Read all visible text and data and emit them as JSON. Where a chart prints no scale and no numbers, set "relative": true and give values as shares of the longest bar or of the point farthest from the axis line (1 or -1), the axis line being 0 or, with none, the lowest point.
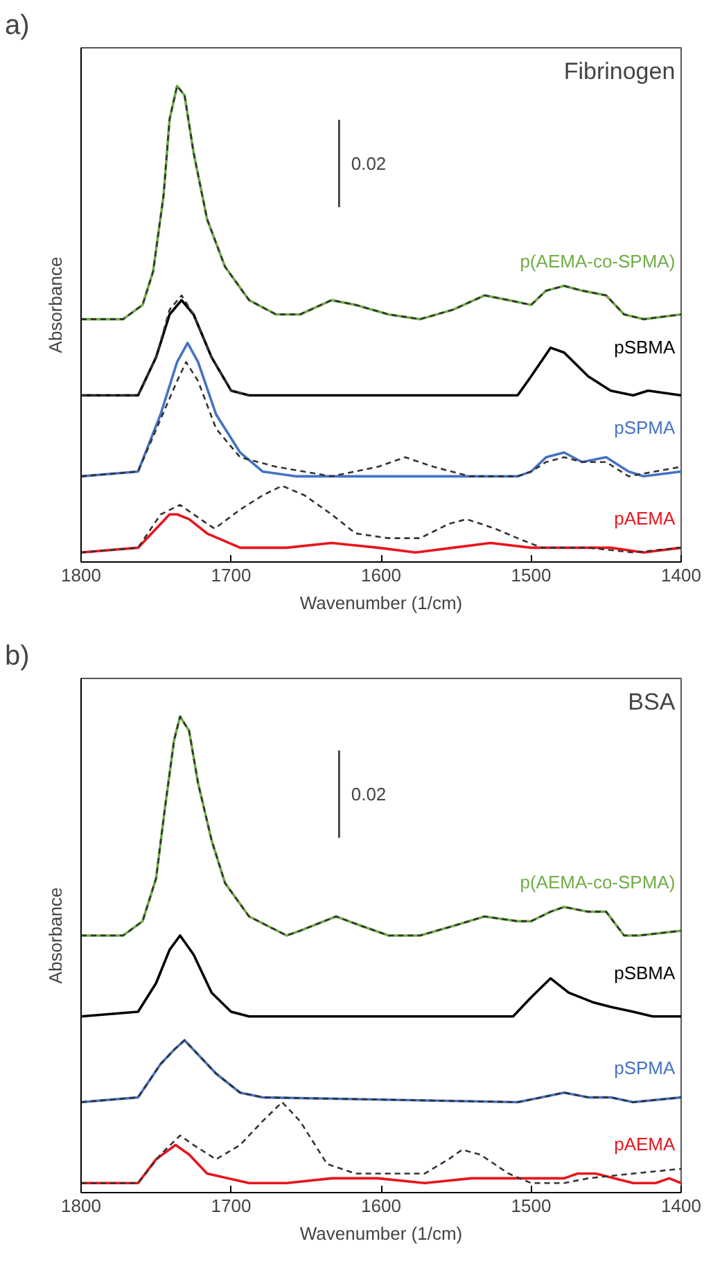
{
  "chart_data": [
    {
      "type": "line",
      "title": "a)",
      "subtitle": "Fibrinogen",
      "xlabel": "Wavenumber (1/cm)",
      "ylabel": "Absorbance",
      "relative": true,
      "xlim": [
        1800,
        1400
      ],
      "xticks": [
        1800,
        1700,
        1600,
        1500,
        1400
      ],
      "grid": false,
      "annotations": [
        "0.02"
      ],
      "series": [
        {
          "name": "p(AEMA-co-SPMA)",
          "color": "#70ad47",
          "x": [
            1800,
            1772,
            1759,
            1752,
            1745,
            1741,
            1736,
            1731,
            1725,
            1716,
            1704,
            1688,
            1670,
            1654,
            1633,
            1617,
            1595,
            1574,
            1552,
            1531,
            1515,
            1500,
            1490,
            1478,
            1466,
            1450,
            1438,
            1425,
            1400
          ],
          "values": [
            0.51,
            0.51,
            0.54,
            0.61,
            0.77,
            0.93,
            1.0,
            0.98,
            0.86,
            0.72,
            0.62,
            0.55,
            0.52,
            0.52,
            0.55,
            0.54,
            0.52,
            0.51,
            0.53,
            0.56,
            0.55,
            0.54,
            0.57,
            0.58,
            0.57,
            0.56,
            0.52,
            0.51,
            0.52
          ]
        },
        {
          "color": "#333333",
          "line_style": "dashed",
          "x": [
            1800,
            1772,
            1759,
            1752,
            1745,
            1741,
            1736,
            1731,
            1725,
            1716,
            1704,
            1688,
            1670,
            1654,
            1633,
            1617,
            1595,
            1574,
            1552,
            1531,
            1515,
            1500,
            1490,
            1478,
            1466,
            1450,
            1438,
            1425,
            1400
          ],
          "values": [
            0.51,
            0.51,
            0.54,
            0.61,
            0.77,
            0.93,
            1.0,
            0.98,
            0.86,
            0.72,
            0.62,
            0.55,
            0.52,
            0.52,
            0.55,
            0.54,
            0.52,
            0.51,
            0.53,
            0.56,
            0.55,
            0.54,
            0.57,
            0.58,
            0.57,
            0.56,
            0.52,
            0.51,
            0.52
          ]
        },
        {
          "name": "pSBMA",
          "color": "#000000",
          "x": [
            1800,
            1762,
            1750,
            1741,
            1733,
            1725,
            1713,
            1700,
            1688,
            1509,
            1500,
            1487,
            1478,
            1462,
            1447,
            1432,
            1422,
            1400
          ],
          "values": [
            0.35,
            0.35,
            0.43,
            0.52,
            0.55,
            0.52,
            0.43,
            0.36,
            0.35,
            0.35,
            0.39,
            0.45,
            0.44,
            0.39,
            0.36,
            0.35,
            0.36,
            0.35
          ]
        },
        {
          "color": "#333333",
          "line_style": "dashed",
          "x": [
            1800,
            1762,
            1750,
            1741,
            1733,
            1725,
            1713,
            1700,
            1688
          ],
          "values": [
            0.35,
            0.35,
            0.43,
            0.53,
            0.56,
            0.52,
            0.43,
            0.36,
            0.35
          ]
        },
        {
          "name": "pSPMA",
          "color": "#4472c4",
          "x": [
            1800,
            1762,
            1747,
            1736,
            1729,
            1722,
            1710,
            1694,
            1679,
            1657,
            1509,
            1500,
            1490,
            1478,
            1466,
            1450,
            1435,
            1425,
            1400
          ],
          "values": [
            0.18,
            0.19,
            0.31,
            0.42,
            0.46,
            0.42,
            0.31,
            0.23,
            0.19,
            0.18,
            0.18,
            0.19,
            0.22,
            0.23,
            0.21,
            0.22,
            0.19,
            0.18,
            0.19
          ]
        },
        {
          "color": "#333333",
          "line_style": "dashed",
          "x": [
            1800,
            1762,
            1747,
            1736,
            1730,
            1722,
            1710,
            1694,
            1670,
            1633,
            1602,
            1584,
            1565,
            1541,
            1509,
            1500,
            1490,
            1478,
            1466,
            1450,
            1435,
            1400
          ],
          "values": [
            0.18,
            0.19,
            0.3,
            0.38,
            0.42,
            0.38,
            0.28,
            0.22,
            0.2,
            0.18,
            0.2,
            0.22,
            0.2,
            0.18,
            0.18,
            0.19,
            0.21,
            0.22,
            0.21,
            0.21,
            0.18,
            0.2
          ]
        },
        {
          "name": "pAEMA",
          "color": "#e8141c",
          "x": [
            1800,
            1762,
            1750,
            1741,
            1736,
            1728,
            1716,
            1694,
            1663,
            1633,
            1602,
            1577,
            1552,
            1527,
            1500,
            1478,
            1447,
            1425,
            1400
          ],
          "values": [
            0.02,
            0.03,
            0.07,
            0.1,
            0.1,
            0.09,
            0.06,
            0.03,
            0.03,
            0.04,
            0.03,
            0.02,
            0.03,
            0.04,
            0.03,
            0.03,
            0.03,
            0.02,
            0.03
          ]
        },
        {
          "color": "#333333",
          "line_style": "dashed",
          "x": [
            1800,
            1762,
            1747,
            1734,
            1725,
            1711,
            1694,
            1679,
            1666,
            1651,
            1633,
            1617,
            1595,
            1574,
            1555,
            1543,
            1524,
            1509,
            1493,
            1462,
            1432,
            1400
          ],
          "values": [
            0.02,
            0.03,
            0.1,
            0.12,
            0.1,
            0.07,
            0.11,
            0.14,
            0.16,
            0.14,
            0.1,
            0.06,
            0.05,
            0.05,
            0.08,
            0.09,
            0.07,
            0.05,
            0.03,
            0.03,
            0.02,
            0.03
          ]
        }
      ]
    },
    {
      "type": "line",
      "title": "b)",
      "subtitle": "BSA",
      "xlabel": "Wavenumber (1/cm)",
      "ylabel": "Absorbance",
      "relative": true,
      "xlim": [
        1800,
        1400
      ],
      "xticks": [
        1800,
        1700,
        1600,
        1500,
        1400
      ],
      "grid": false,
      "annotations": [
        "0.02"
      ],
      "series": [
        {
          "name": "p(AEMA-co-SPMA)",
          "color": "#70ad47",
          "x": [
            1800,
            1772,
            1759,
            1750,
            1744,
            1738,
            1734,
            1728,
            1722,
            1713,
            1704,
            1688,
            1663,
            1654,
            1630,
            1613,
            1595,
            1574,
            1552,
            1531,
            1509,
            1500,
            1487,
            1478,
            1462,
            1450,
            1438,
            1428,
            1400
          ],
          "values": [
            0.54,
            0.54,
            0.57,
            0.66,
            0.81,
            0.95,
            1.0,
            0.97,
            0.86,
            0.74,
            0.65,
            0.58,
            0.54,
            0.55,
            0.58,
            0.56,
            0.54,
            0.54,
            0.56,
            0.58,
            0.57,
            0.57,
            0.59,
            0.6,
            0.59,
            0.59,
            0.54,
            0.54,
            0.55
          ]
        },
        {
          "color": "#333333",
          "line_style": "dashed",
          "x": [
            1800,
            1772,
            1759,
            1750,
            1744,
            1738,
            1734,
            1728,
            1722,
            1713,
            1704,
            1688,
            1663,
            1654,
            1630,
            1613,
            1595,
            1574,
            1552,
            1531,
            1509,
            1500,
            1487,
            1478,
            1462,
            1450,
            1438,
            1428,
            1400
          ],
          "values": [
            0.54,
            0.54,
            0.57,
            0.66,
            0.81,
            0.95,
            1.0,
            0.97,
            0.86,
            0.74,
            0.65,
            0.58,
            0.54,
            0.55,
            0.58,
            0.56,
            0.54,
            0.54,
            0.56,
            0.58,
            0.57,
            0.57,
            0.59,
            0.6,
            0.59,
            0.59,
            0.54,
            0.54,
            0.55
          ]
        },
        {
          "name": "pSBMA",
          "color": "#000000",
          "x": [
            1800,
            1762,
            1750,
            1741,
            1734,
            1725,
            1713,
            1700,
            1688,
            1512,
            1500,
            1487,
            1475,
            1459,
            1447,
            1432,
            1419,
            1400
          ],
          "values": [
            0.37,
            0.38,
            0.44,
            0.51,
            0.54,
            0.5,
            0.42,
            0.38,
            0.37,
            0.37,
            0.41,
            0.45,
            0.42,
            0.4,
            0.39,
            0.38,
            0.37,
            0.37
          ]
        },
        {
          "name": "pSPMA",
          "color": "#4472c4",
          "x": [
            1800,
            1762,
            1747,
            1738,
            1731,
            1722,
            1710,
            1694,
            1679,
            1509,
            1493,
            1478,
            1462,
            1447,
            1432,
            1400
          ],
          "values": [
            0.19,
            0.2,
            0.27,
            0.3,
            0.32,
            0.29,
            0.25,
            0.21,
            0.2,
            0.19,
            0.2,
            0.21,
            0.2,
            0.2,
            0.19,
            0.2
          ]
        },
        {
          "color": "#333333",
          "line_style": "dashed",
          "x": [
            1800,
            1762,
            1747,
            1738,
            1731,
            1722,
            1710,
            1694,
            1679,
            1509,
            1493,
            1478,
            1462,
            1447,
            1432,
            1400
          ],
          "values": [
            0.19,
            0.2,
            0.27,
            0.3,
            0.32,
            0.29,
            0.25,
            0.21,
            0.2,
            0.19,
            0.2,
            0.21,
            0.2,
            0.2,
            0.19,
            0.2
          ]
        },
        {
          "name": "pAEMA",
          "color": "#e8141c",
          "x": [
            1800,
            1762,
            1750,
            1737,
            1728,
            1716,
            1688,
            1663,
            1633,
            1602,
            1571,
            1540,
            1509,
            1500,
            1478,
            1469,
            1457,
            1432,
            1417,
            1408,
            1400
          ],
          "values": [
            0.02,
            0.02,
            0.07,
            0.1,
            0.08,
            0.04,
            0.02,
            0.02,
            0.03,
            0.03,
            0.02,
            0.03,
            0.03,
            0.03,
            0.03,
            0.04,
            0.04,
            0.02,
            0.02,
            0.03,
            0.02
          ]
        },
        {
          "color": "#333333",
          "line_style": "dashed",
          "x": [
            1800,
            1762,
            1747,
            1734,
            1725,
            1710,
            1694,
            1679,
            1666,
            1654,
            1636,
            1617,
            1595,
            1571,
            1555,
            1546,
            1534,
            1515,
            1500,
            1478,
            1462,
            1432,
            1400
          ],
          "values": [
            0.02,
            0.02,
            0.08,
            0.12,
            0.1,
            0.07,
            0.1,
            0.15,
            0.19,
            0.15,
            0.06,
            0.04,
            0.04,
            0.04,
            0.07,
            0.09,
            0.08,
            0.04,
            0.02,
            0.02,
            0.03,
            0.04,
            0.05
          ]
        }
      ]
    }
  ]
}
